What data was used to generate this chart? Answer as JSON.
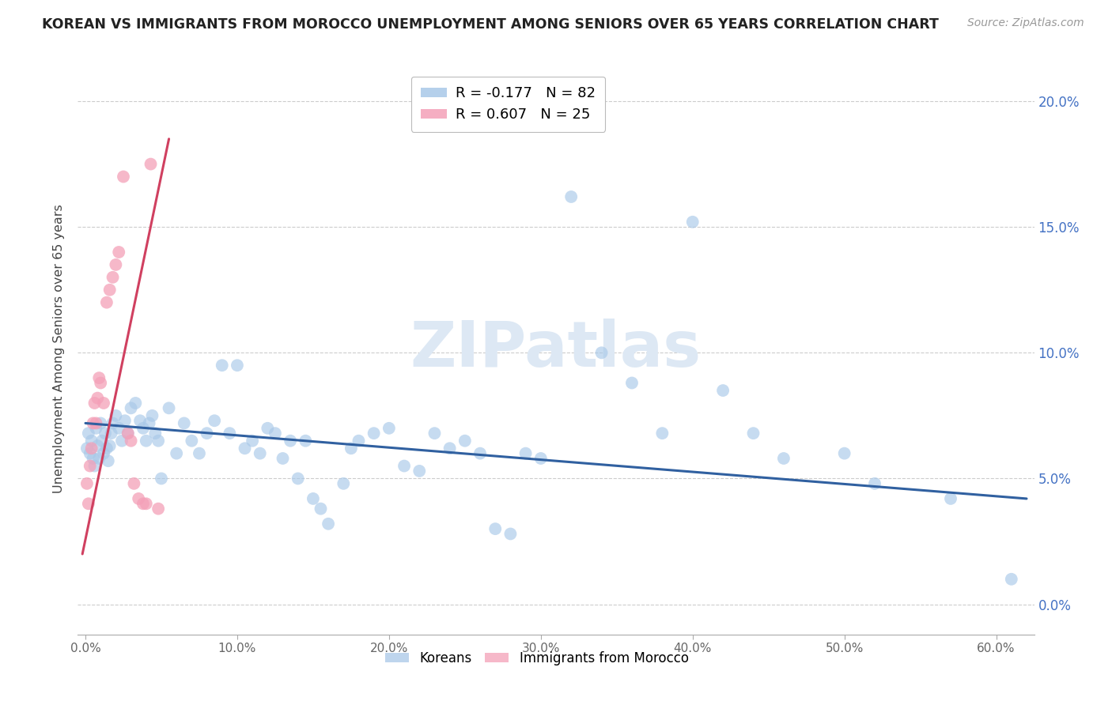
{
  "title": "KOREAN VS IMMIGRANTS FROM MOROCCO UNEMPLOYMENT AMONG SENIORS OVER 65 YEARS CORRELATION CHART",
  "source": "Source: ZipAtlas.com",
  "xlabel_ticks": [
    "0.0%",
    "10.0%",
    "20.0%",
    "30.0%",
    "40.0%",
    "50.0%",
    "60.0%"
  ],
  "xlabel_vals": [
    0.0,
    0.1,
    0.2,
    0.3,
    0.4,
    0.5,
    0.6
  ],
  "ylabel_ticks": [
    "0.0%",
    "5.0%",
    "10.0%",
    "15.0%",
    "20.0%"
  ],
  "ylabel_vals": [
    0.0,
    0.05,
    0.1,
    0.15,
    0.2
  ],
  "xlim": [
    -0.005,
    0.625
  ],
  "ylim": [
    -0.012,
    0.215
  ],
  "korean_R": -0.177,
  "korean_N": 82,
  "morocco_R": 0.607,
  "morocco_N": 25,
  "korean_color": "#a8c8e8",
  "morocco_color": "#f4a0b8",
  "korean_line_color": "#3060a0",
  "morocco_line_color": "#d04060",
  "watermark_color": "#dde8f4",
  "ylabel": "Unemployment Among Seniors over 65 years",
  "korean_scatter_x": [
    0.001,
    0.002,
    0.003,
    0.004,
    0.005,
    0.006,
    0.007,
    0.008,
    0.009,
    0.01,
    0.011,
    0.012,
    0.013,
    0.014,
    0.015,
    0.016,
    0.017,
    0.018,
    0.02,
    0.022,
    0.024,
    0.026,
    0.028,
    0.03,
    0.033,
    0.036,
    0.038,
    0.04,
    0.042,
    0.044,
    0.046,
    0.048,
    0.05,
    0.055,
    0.06,
    0.065,
    0.07,
    0.075,
    0.08,
    0.085,
    0.09,
    0.095,
    0.1,
    0.105,
    0.11,
    0.115,
    0.12,
    0.125,
    0.13,
    0.135,
    0.14,
    0.145,
    0.15,
    0.155,
    0.16,
    0.17,
    0.175,
    0.18,
    0.19,
    0.2,
    0.21,
    0.22,
    0.23,
    0.24,
    0.25,
    0.26,
    0.27,
    0.28,
    0.29,
    0.3,
    0.32,
    0.34,
    0.36,
    0.38,
    0.4,
    0.42,
    0.44,
    0.46,
    0.5,
    0.52,
    0.57,
    0.61
  ],
  "korean_scatter_y": [
    0.062,
    0.068,
    0.06,
    0.065,
    0.058,
    0.055,
    0.07,
    0.063,
    0.058,
    0.072,
    0.065,
    0.06,
    0.068,
    0.062,
    0.057,
    0.063,
    0.068,
    0.072,
    0.075,
    0.07,
    0.065,
    0.073,
    0.068,
    0.078,
    0.08,
    0.073,
    0.07,
    0.065,
    0.072,
    0.075,
    0.068,
    0.065,
    0.05,
    0.078,
    0.06,
    0.072,
    0.065,
    0.06,
    0.068,
    0.073,
    0.095,
    0.068,
    0.095,
    0.062,
    0.065,
    0.06,
    0.07,
    0.068,
    0.058,
    0.065,
    0.05,
    0.065,
    0.042,
    0.038,
    0.032,
    0.048,
    0.062,
    0.065,
    0.068,
    0.07,
    0.055,
    0.053,
    0.068,
    0.062,
    0.065,
    0.06,
    0.03,
    0.028,
    0.06,
    0.058,
    0.162,
    0.1,
    0.088,
    0.068,
    0.152,
    0.085,
    0.068,
    0.058,
    0.06,
    0.048,
    0.042,
    0.01
  ],
  "morocco_scatter_x": [
    0.001,
    0.002,
    0.003,
    0.004,
    0.005,
    0.006,
    0.007,
    0.008,
    0.009,
    0.01,
    0.012,
    0.014,
    0.016,
    0.018,
    0.02,
    0.022,
    0.025,
    0.028,
    0.03,
    0.032,
    0.035,
    0.038,
    0.04,
    0.043,
    0.048
  ],
  "morocco_scatter_y": [
    0.048,
    0.04,
    0.055,
    0.062,
    0.072,
    0.08,
    0.072,
    0.082,
    0.09,
    0.088,
    0.08,
    0.12,
    0.125,
    0.13,
    0.135,
    0.14,
    0.17,
    0.068,
    0.065,
    0.048,
    0.042,
    0.04,
    0.04,
    0.175,
    0.038
  ],
  "korean_trend_x": [
    0.0,
    0.62
  ],
  "korean_trend_y": [
    0.072,
    0.042
  ],
  "morocco_trend_x": [
    -0.002,
    0.055
  ],
  "morocco_trend_y": [
    0.02,
    0.185
  ]
}
